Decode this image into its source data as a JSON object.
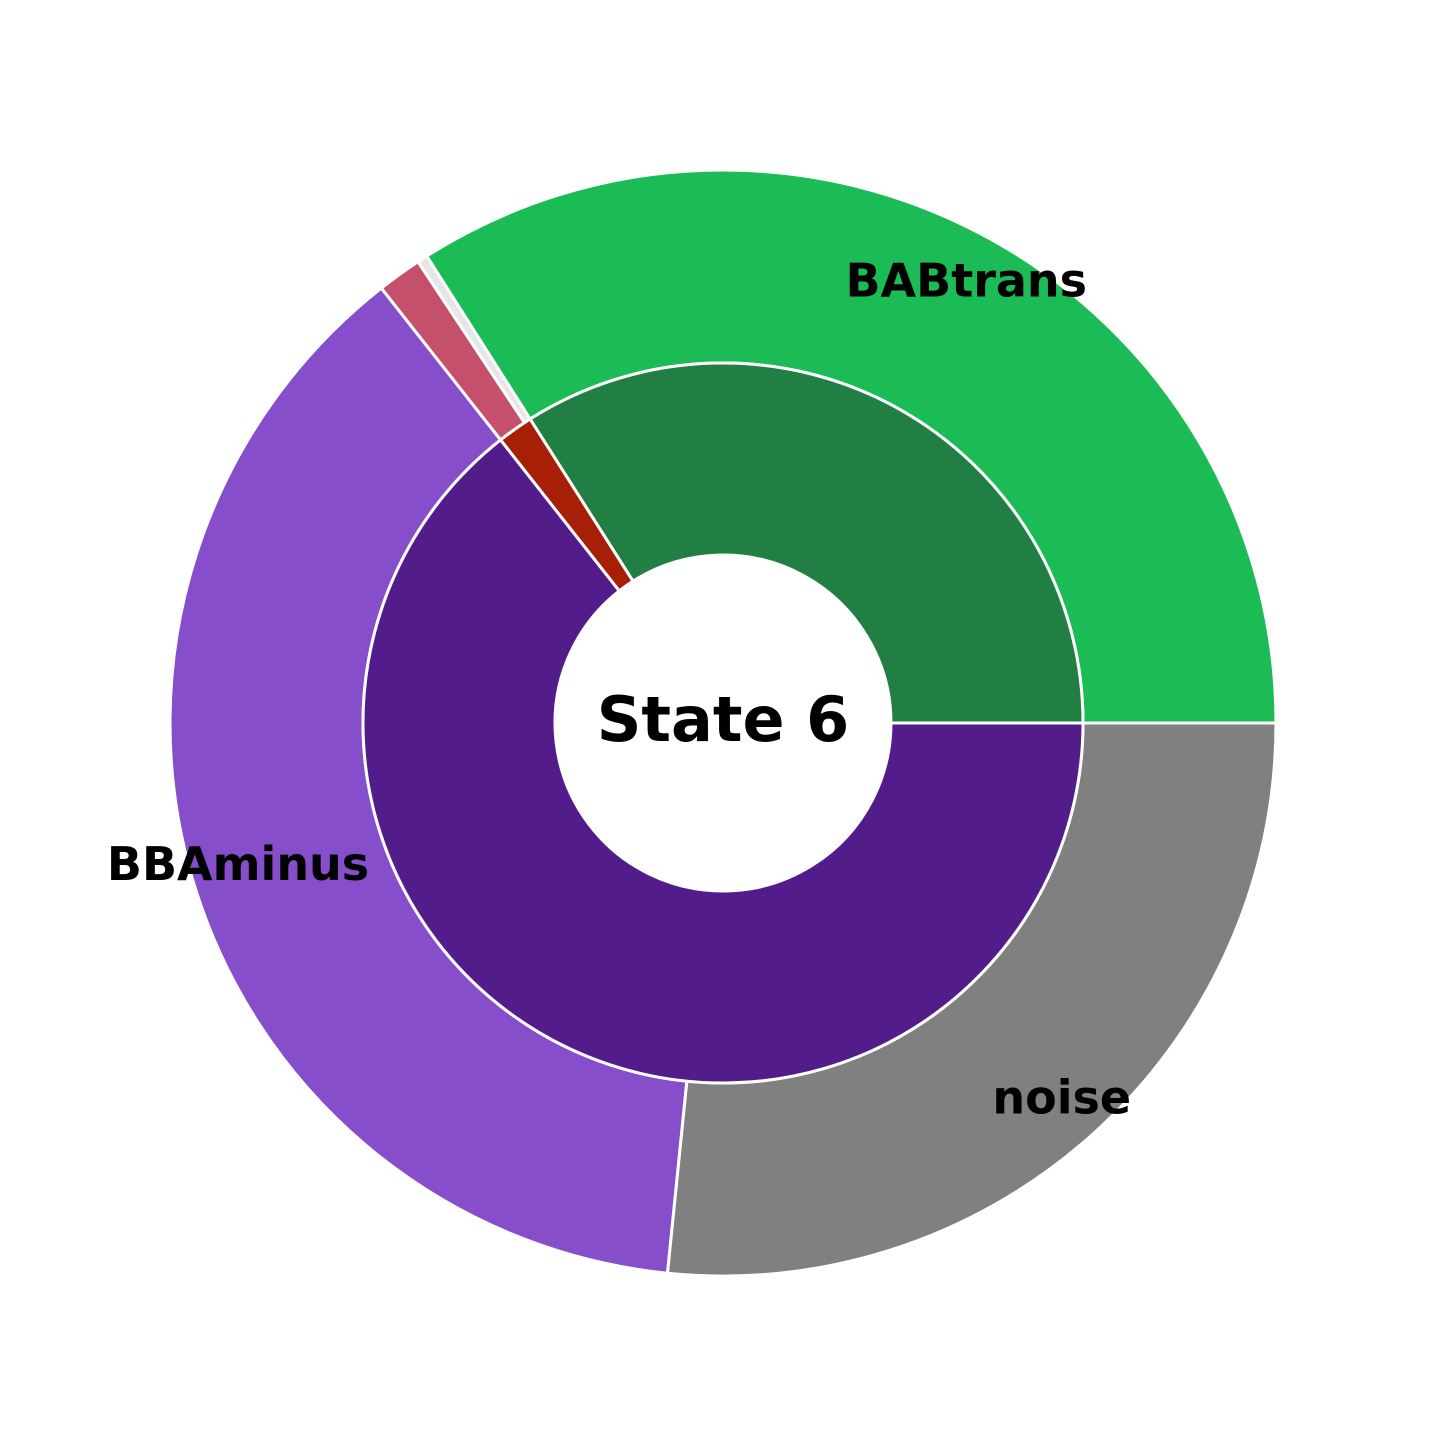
{
  "chart_data": {
    "type": "pie",
    "subtype": "nested-donut",
    "center_label": "State 6",
    "rings": [
      {
        "ring": "inner",
        "slices": [
          {
            "value": 34.0,
            "color": "#217f43"
          },
          {
            "value": 1.6,
            "color": "#a81f07"
          },
          {
            "value": 64.4,
            "color": "#521c8a"
          }
        ]
      },
      {
        "ring": "outer",
        "slices": [
          {
            "label": "BABtrans",
            "value": 34.0,
            "color": "#1bbc55"
          },
          {
            "value": 0.3,
            "color": "#e6e6e6"
          },
          {
            "value": 1.3,
            "color": "#c4506c"
          },
          {
            "label": "BBAminus",
            "value": 37.8,
            "color": "#874ecb"
          },
          {
            "label": "noise",
            "value": 26.6,
            "color": "#808080"
          }
        ]
      }
    ],
    "start": "3 o'clock",
    "direction": "counterclockwise"
  }
}
